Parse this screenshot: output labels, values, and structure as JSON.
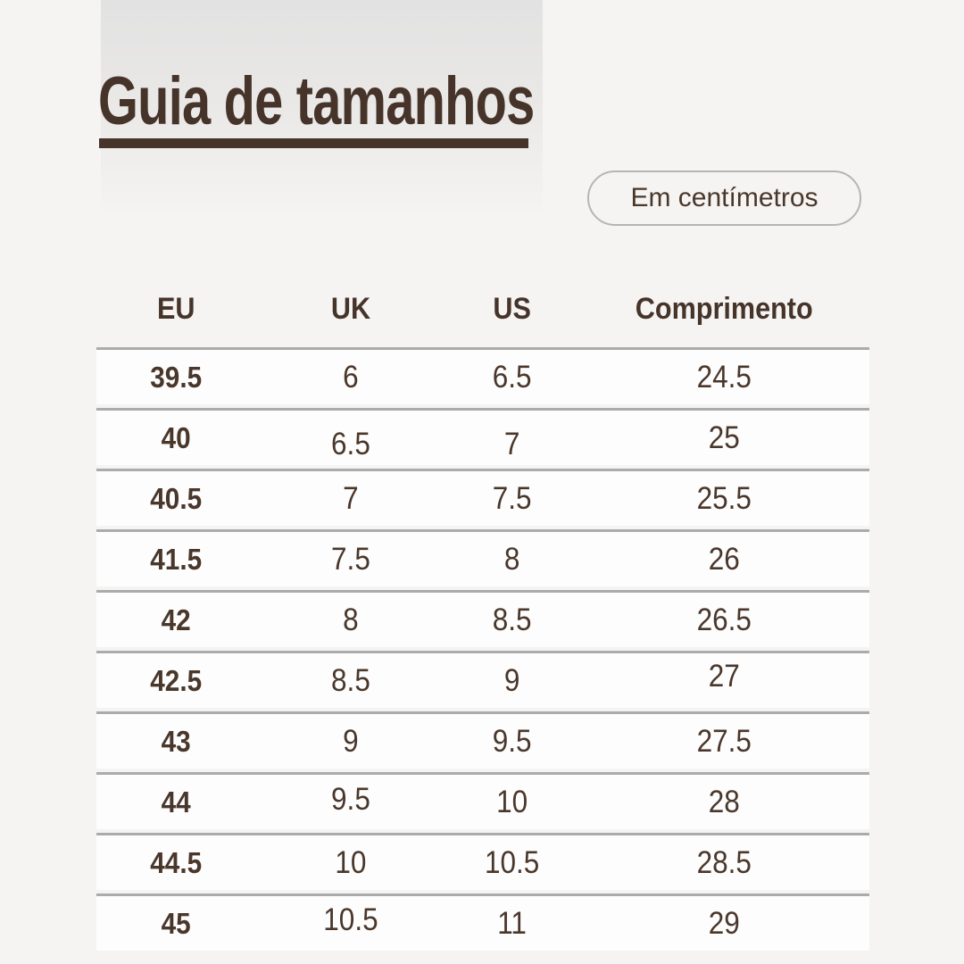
{
  "header": {
    "title": "Guia de tamanhos"
  },
  "unit_pill": {
    "label": "Em centímetros"
  },
  "table": {
    "headers": [
      "EU",
      "UK",
      "US",
      "Comprimento"
    ],
    "rows": [
      [
        "39.5",
        "6",
        "6.5",
        "24.5"
      ],
      [
        "40",
        "6.5",
        "7",
        "25"
      ],
      [
        "40.5",
        "7",
        "7.5",
        "25.5"
      ],
      [
        "41.5",
        "7.5",
        "8",
        "26"
      ],
      [
        "42",
        "8",
        "8.5",
        "26.5"
      ],
      [
        "42.5",
        "8.5",
        "9",
        "27"
      ],
      [
        "43",
        "9",
        "9.5",
        "27.5"
      ],
      [
        "44",
        "9.5",
        "10",
        "28"
      ],
      [
        "44.5",
        "10",
        "10.5",
        "28.5"
      ],
      [
        "45",
        "10.5",
        "11",
        "29"
      ]
    ]
  },
  "colors": {
    "page_background": "#f5f4f2",
    "accent_brown": "#46342a",
    "cell_text_brown": "#4a372b",
    "row_background": "#fdfdfd",
    "separator_gray": "#ababab",
    "pill_border_gray": "#b7b5b2",
    "band_gray": "#e2e2e2"
  }
}
